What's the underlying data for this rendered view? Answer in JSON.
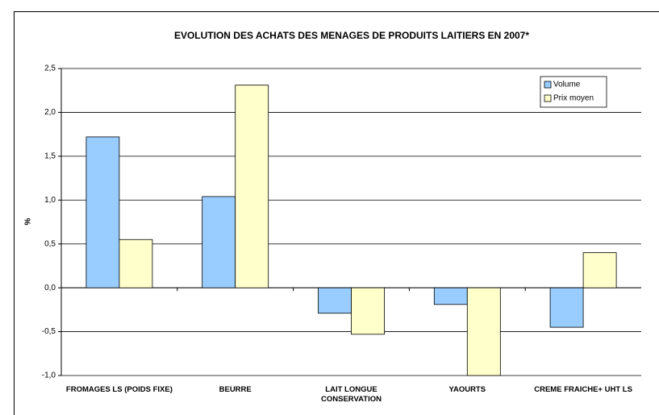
{
  "chart_data": {
    "type": "bar",
    "title": "EVOLUTION DES ACHATS DES MENAGES DE PRODUITS LAITIERS EN 2007*",
    "y_label": "%",
    "categories": [
      "FROMAGES LS (POIDS FIXE)",
      "BEURRE",
      "LAIT LONGUE CONSERVATION",
      "YAOURTS",
      "CREME FRAICHE+ UHT LS"
    ],
    "series": [
      {
        "name": "Volume",
        "color": "#99ccff",
        "values": [
          1.72,
          1.04,
          -0.29,
          -0.19,
          -0.45
        ]
      },
      {
        "name": "Prix moyen",
        "color": "#ffffcc",
        "values": [
          0.55,
          2.31,
          -0.53,
          -1.0,
          0.4
        ]
      }
    ],
    "ylim": [
      -1.0,
      2.5
    ],
    "yticks": [
      {
        "value": -1.0,
        "label": "-1,0"
      },
      {
        "value": -0.5,
        "label": "-0,5"
      },
      {
        "value": 0.0,
        "label": "0,0"
      },
      {
        "value": 0.5,
        "label": "0,5"
      },
      {
        "value": 1.0,
        "label": "1,0"
      },
      {
        "value": 1.5,
        "label": "1,5"
      },
      {
        "value": 2.0,
        "label": "2,0"
      },
      {
        "value": 2.5,
        "label": "2,5"
      }
    ],
    "grid": true,
    "legend": "top-right"
  }
}
